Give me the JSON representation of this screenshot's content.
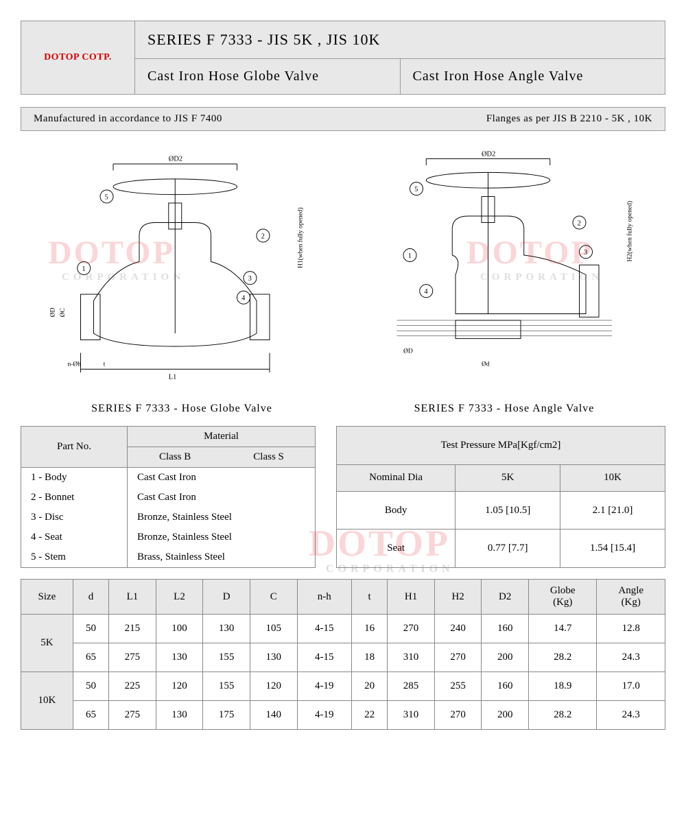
{
  "header": {
    "company": "DOTOP COTP.",
    "series_title": "SERIES F 7333 - JIS 5K , JIS 10K",
    "sub_left": "Cast Iron Hose Globe Valve",
    "sub_right": "Cast Iron Hose Angle Valve"
  },
  "info_bar": {
    "left": "Manufactured in accordance to JIS F 7400",
    "right": "Flanges as per JIS B 2210 - 5K , 10K"
  },
  "diagrams": {
    "left_caption": "SERIES F 7333 - Hose Globe Valve",
    "right_caption": "SERIES F 7333 - Hose Angle Valve",
    "callouts": [
      "1",
      "2",
      "3",
      "4",
      "5"
    ],
    "dim_labels_left": [
      "ØD2",
      "ØD",
      "ØC",
      "n-Øh",
      "t",
      "L1",
      "H1(when fully opened)"
    ],
    "dim_labels_right": [
      "ØD2",
      "Ød",
      "ØD",
      "H2(when fully opened)"
    ]
  },
  "watermark": {
    "main": "DOTOP",
    "sub": "CORPORATION",
    "color": "rgba(230,30,40,0.18)"
  },
  "material_table": {
    "header_partno": "Part No.",
    "header_material": "Material",
    "header_classB": "Class B",
    "header_classS": "Class S",
    "rows": [
      {
        "part": "1 - Body",
        "material": "Cast Cast Iron"
      },
      {
        "part": "2 - Bonnet",
        "material": "Cast Cast Iron"
      },
      {
        "part": "3 - Disc",
        "material": "Bronze, Stainless Steel"
      },
      {
        "part": "4 - Seat",
        "material": "Bronze, Stainless Steel"
      },
      {
        "part": "5 - Stem",
        "material": "Brass,   Stainless Steel"
      }
    ]
  },
  "pressure_table": {
    "title": "Test Pressure MPa[Kgf/cm2]",
    "col_nominal": "Nominal Dia",
    "col_5k": "5K",
    "col_10k": "10K",
    "rows": [
      {
        "label": "Body",
        "v5k": "1.05 [10.5]",
        "v10k": "2.1 [21.0]"
      },
      {
        "label": "Seat",
        "v5k": "0.77 [7.7]",
        "v10k": "1.54 [15.4]"
      }
    ]
  },
  "dim_table": {
    "columns": [
      "Size",
      "d",
      "L1",
      "L2",
      "D",
      "C",
      "n-h",
      "t",
      "H1",
      "H2",
      "D2",
      "Globe (Kg)",
      "Angle (Kg)"
    ],
    "groups": [
      {
        "size": "5K",
        "rows": [
          [
            "50",
            "215",
            "100",
            "130",
            "105",
            "4-15",
            "16",
            "270",
            "240",
            "160",
            "14.7",
            "12.8"
          ],
          [
            "65",
            "275",
            "130",
            "155",
            "130",
            "4-15",
            "18",
            "310",
            "270",
            "200",
            "28.2",
            "24.3"
          ]
        ]
      },
      {
        "size": "10K",
        "rows": [
          [
            "50",
            "225",
            "120",
            "155",
            "120",
            "4-19",
            "20",
            "285",
            "255",
            "160",
            "18.9",
            "17.0"
          ],
          [
            "65",
            "275",
            "130",
            "175",
            "140",
            "4-19",
            "22",
            "310",
            "270",
            "200",
            "28.2",
            "24.3"
          ]
        ]
      }
    ]
  },
  "colors": {
    "panel_bg": "#e8e8e8",
    "border": "#888888",
    "brand_red": "#d40000"
  }
}
